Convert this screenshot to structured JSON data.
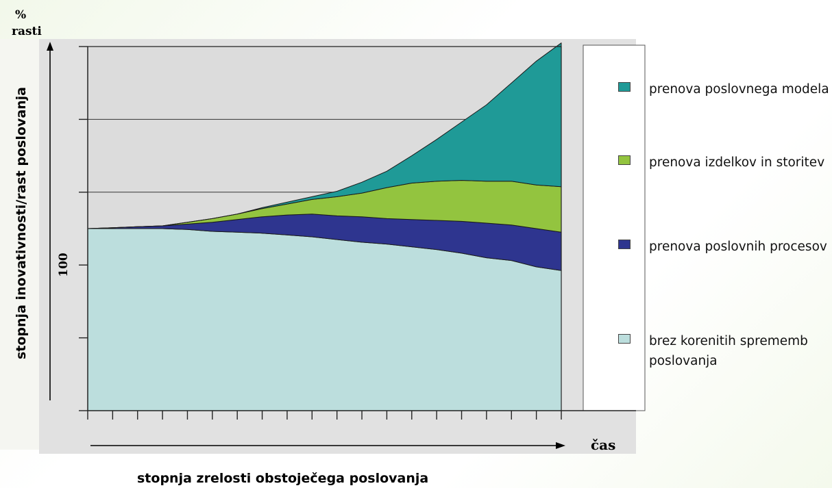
{
  "labels": {
    "percent": "%",
    "rasti": "rasti",
    "ylabel": "stopnja inovativnosti/rast poslovanja",
    "hundred": "100",
    "time": "čas",
    "xlabel": "stopnja zrelosti obstoječega poslovanja"
  },
  "legend": [
    {
      "label": "prenova poslovnega modela",
      "color": "#1f9a97"
    },
    {
      "label": "prenova izdelkov in storitev",
      "color": "#93c43f"
    },
    {
      "label": "prenova poslovnih procesov",
      "color": "#2e358f"
    },
    {
      "label": "brez korenitih sprememb poslovanja",
      "color": "#bcdedd"
    }
  ],
  "chart_data": {
    "type": "area",
    "stacked": true,
    "title": "",
    "xlabel": "stopnja zrelosti obstoječega poslovanja",
    "ylabel": "stopnja inovativnosti/rast poslovanja",
    "y_marked_value": 100,
    "x_ticks": 19,
    "y_ticks": 5,
    "ylim": [
      0,
      200
    ],
    "x": [
      0,
      1,
      2,
      3,
      4,
      5,
      6,
      7,
      8,
      9,
      10,
      11,
      12,
      13,
      14,
      15,
      16,
      17,
      18,
      19
    ],
    "series": [
      {
        "name": "brez korenitih sprememb poslovanja",
        "values": [
          100,
          100,
          100,
          100,
          99.5,
          98.5,
          98,
          97.5,
          96.5,
          95.5,
          94,
          92.5,
          91.5,
          90,
          88.5,
          86.5,
          84,
          82.5,
          79,
          77
        ]
      },
      {
        "name": "prenova poslovnih procesov",
        "values": [
          0,
          0.5,
          1,
          1.5,
          3,
          5,
          7,
          9,
          11,
          12.5,
          13,
          14,
          14,
          15,
          16,
          17.5,
          19,
          19.5,
          21,
          21
        ]
      },
      {
        "name": "prenova izdelkov in storitev",
        "values": [
          0,
          0,
          0,
          0,
          1,
          2,
          3,
          4.5,
          6,
          8,
          10.5,
          13,
          17,
          20,
          21.5,
          22.5,
          23,
          24,
          24,
          25
        ]
      },
      {
        "name": "prenova poslovnega modela",
        "values": [
          0,
          0,
          0,
          0,
          0,
          0,
          0,
          0.5,
          1,
          1.5,
          3,
          6,
          9,
          15,
          23,
          32,
          42,
          54,
          68,
          79
        ]
      }
    ]
  }
}
